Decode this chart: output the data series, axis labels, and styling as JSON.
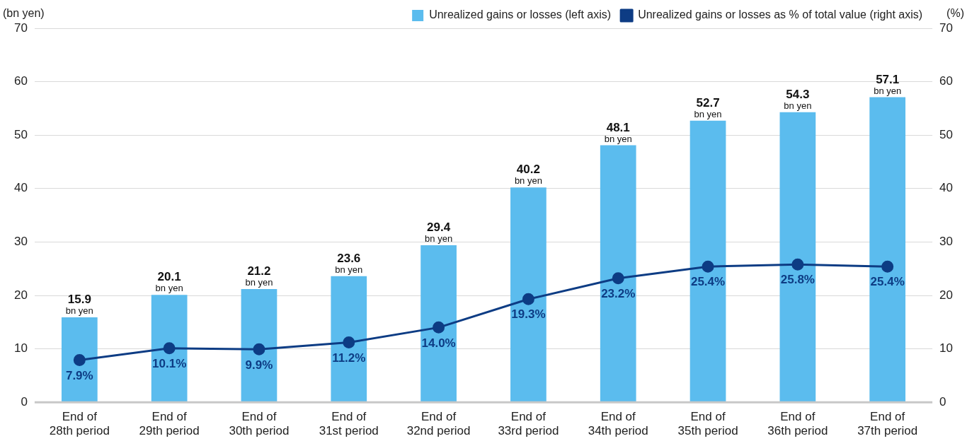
{
  "chart_data": {
    "type": "bar",
    "ylabel": "(bn yen)",
    "y2label": "(%)",
    "categories": [
      "End of 28th period",
      "End of 29th period",
      "End of 30th period",
      "End of 31st period",
      "End of 32nd period",
      "End of 33rd period",
      "End of 34th period",
      "End of 35th period",
      "End of 36th period",
      "End of 37th period"
    ],
    "series": [
      {
        "name": "Unrealized gains or losses (left axis)",
        "color": "#5bbcee",
        "values": [
          15.9,
          20.1,
          21.2,
          23.6,
          29.4,
          40.2,
          48.1,
          52.7,
          54.3,
          57.1
        ],
        "value_labels": [
          "15.9 bn yen",
          "20.1 bn yen",
          "21.2 bn yen",
          "23.6 bn yen",
          "29.4 bn yen",
          "40.2 bn yen",
          "48.1 bn yen",
          "52.7 bn yen",
          "54.3 bn yen",
          "57.1 bn yen"
        ]
      },
      {
        "name": "Unrealized gains or losses as % of total value (right axis)",
        "type": "line",
        "axis": "y2",
        "color": "#0d3c84",
        "values": [
          7.9,
          10.1,
          9.9,
          11.2,
          14.0,
          19.3,
          23.2,
          25.4,
          25.8,
          25.4
        ],
        "value_labels": [
          "7.9%",
          "10.1%",
          "9.9%",
          "11.2%",
          "14.0%",
          "19.3%",
          "23.2%",
          "25.4%",
          "25.8%",
          "25.4%"
        ]
      }
    ],
    "ylim": [
      0,
      70
    ],
    "yticks": [
      0,
      10,
      20,
      30,
      40,
      50,
      60,
      70
    ],
    "y2lim": [
      0,
      70
    ],
    "y2ticks": [
      0,
      10,
      20,
      30,
      40,
      50,
      60,
      70
    ],
    "grid": "y",
    "legend": "top right",
    "marker": "circle",
    "line_style": "solid"
  }
}
